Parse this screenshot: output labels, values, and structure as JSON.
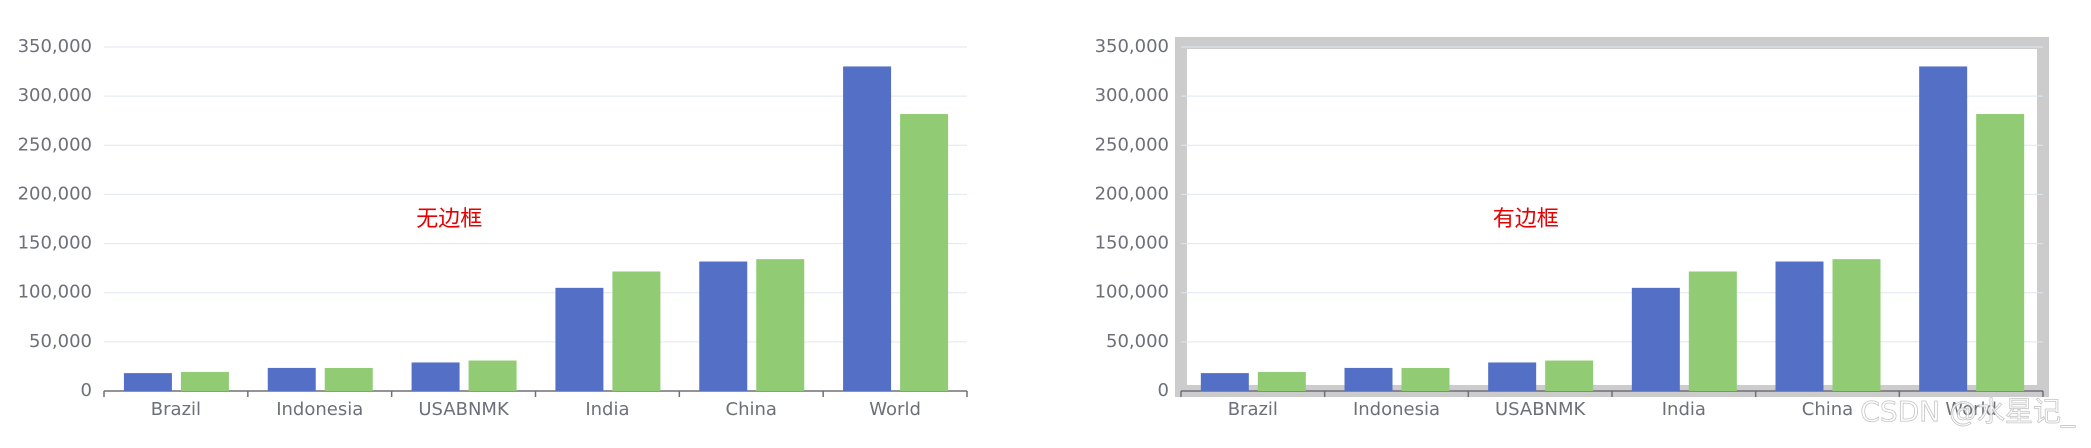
{
  "chart_data": [
    {
      "type": "bar",
      "annotation": "无边框",
      "border": false,
      "categories": [
        "Brazil",
        "Indonesia",
        "USABNMK",
        "India",
        "China",
        "World"
      ],
      "series": [
        {
          "color": "#5470c6",
          "values": [
            18203,
            23489,
            29034,
            104970,
            131744,
            330230
          ]
        },
        {
          "color": "#91cc75",
          "values": [
            19325,
            23438,
            31000,
            121594,
            134141,
            281807
          ]
        }
      ],
      "ylim": [
        0,
        350000
      ],
      "yticks": [
        0,
        {
          "value": 50000,
          "label": "50,000"
        },
        {
          "value": 100000,
          "label": "100,000"
        },
        {
          "value": 150000,
          "label": "150,000"
        },
        {
          "value": 200000,
          "label": "200,000"
        },
        {
          "value": 250000,
          "label": "250,000"
        },
        {
          "value": 300000,
          "label": "300,000"
        },
        {
          "value": 350000,
          "label": "350,000"
        }
      ],
      "grid": true
    },
    {
      "type": "bar",
      "annotation": "有边框",
      "border": true,
      "categories": [
        "Brazil",
        "Indonesia",
        "USABNMK",
        "India",
        "China",
        "World"
      ],
      "series": [
        {
          "color": "#5470c6",
          "values": [
            18203,
            23489,
            29034,
            104970,
            131744,
            330230
          ]
        },
        {
          "color": "#91cc75",
          "values": [
            19325,
            23438,
            31000,
            121594,
            134141,
            281807
          ]
        }
      ],
      "ylim": [
        0,
        350000
      ],
      "yticks": [
        0,
        {
          "value": 50000,
          "label": "50,000"
        },
        {
          "value": 100000,
          "label": "100,000"
        },
        {
          "value": 150000,
          "label": "150,000"
        },
        {
          "value": 200000,
          "label": "200,000"
        },
        {
          "value": 250000,
          "label": "250,000"
        },
        {
          "value": 300000,
          "label": "300,000"
        },
        {
          "value": 350000,
          "label": "350,000"
        }
      ],
      "grid": true
    }
  ],
  "watermark": "CSDN @水星记_"
}
